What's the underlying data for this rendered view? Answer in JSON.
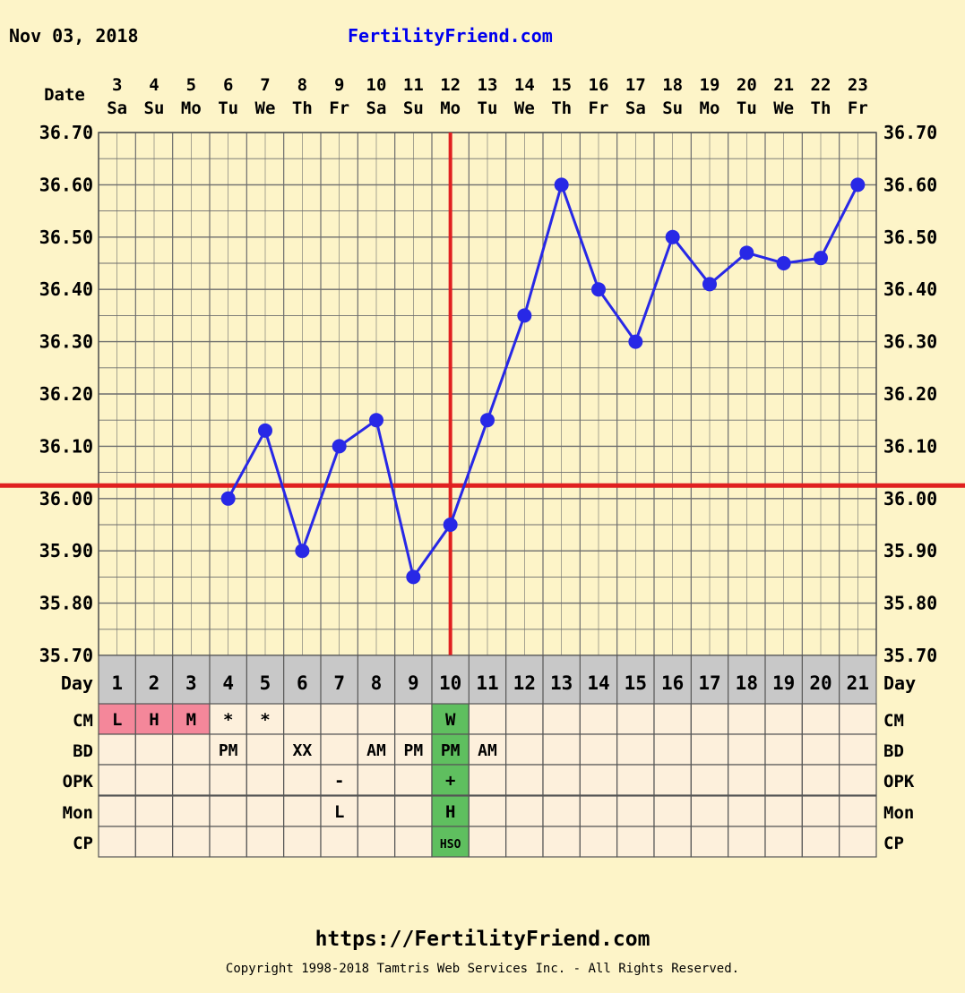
{
  "header": {
    "date_text": "Nov 03, 2018",
    "site_title": "FertilityFriend.com"
  },
  "footer": {
    "url": "https://FertilityFriend.com",
    "copyright": "Copyright 1998-2018 Tamtris Web Services Inc. - All Rights Reserved."
  },
  "colors": {
    "background": "#fdf4c8",
    "grid_line": "#6d6d6d",
    "temperature_line": "#2828e6",
    "coverline": "#e02020",
    "day_row_bg": "#c8c8c8",
    "period_cell": "#f4879a",
    "ovulation_cell": "#5fbf5f",
    "table_cell": "#fdf0dc"
  },
  "chart_data": {
    "type": "line",
    "title": "",
    "date_row_label": "Date",
    "day_row_label": "Day",
    "dates": [
      "3",
      "4",
      "5",
      "6",
      "7",
      "8",
      "9",
      "10",
      "11",
      "12",
      "13",
      "14",
      "15",
      "16",
      "17",
      "18",
      "19",
      "20",
      "21",
      "22",
      "23"
    ],
    "weekdays": [
      "Sa",
      "Su",
      "Mo",
      "Tu",
      "We",
      "Th",
      "Fr",
      "Sa",
      "Su",
      "Mo",
      "Tu",
      "We",
      "Th",
      "Fr",
      "Sa",
      "Su",
      "Mo",
      "Tu",
      "We",
      "Th",
      "Fr"
    ],
    "days": [
      "1",
      "2",
      "3",
      "4",
      "5",
      "6",
      "7",
      "8",
      "9",
      "10",
      "11",
      "12",
      "13",
      "14",
      "15",
      "16",
      "17",
      "18",
      "19",
      "20",
      "21"
    ],
    "y_ticks": [
      "36.70",
      "36.60",
      "36.50",
      "36.40",
      "36.30",
      "36.20",
      "36.10",
      "36.00",
      "35.90",
      "35.80",
      "35.70"
    ],
    "ylim": [
      35.7,
      36.7
    ],
    "y_minor_step": 0.05,
    "grid": true,
    "series": [
      {
        "values": [
          null,
          null,
          null,
          36.0,
          36.13,
          35.9,
          36.1,
          36.15,
          35.85,
          35.95,
          36.15,
          36.35,
          36.6,
          36.4,
          36.3,
          36.5,
          36.41,
          36.47,
          36.45,
          36.46,
          36.6
        ]
      }
    ],
    "coverline": 36.025,
    "ovulation_day": "10",
    "observation_rows": [
      {
        "label": "CM",
        "values": [
          "L",
          "H",
          "M",
          "*",
          "*",
          "",
          "",
          "",
          "",
          "W",
          "",
          "",
          "",
          "",
          "",
          "",
          "",
          "",
          "",
          "",
          ""
        ]
      },
      {
        "label": "BD",
        "values": [
          "",
          "",
          "",
          "PM",
          "",
          "XX",
          "",
          "AM",
          "PM",
          "PM",
          "AM",
          "",
          "",
          "",
          "",
          "",
          "",
          "",
          "",
          "",
          ""
        ]
      },
      {
        "label": "OPK",
        "values": [
          "",
          "",
          "",
          "",
          "",
          "",
          "-",
          "",
          "",
          "+",
          "",
          "",
          "",
          "",
          "",
          "",
          "",
          "",
          "",
          "",
          ""
        ]
      },
      {
        "label": "Mon",
        "values": [
          "",
          "",
          "",
          "",
          "",
          "",
          "L",
          "",
          "",
          "H",
          "",
          "",
          "",
          "",
          "",
          "",
          "",
          "",
          "",
          "",
          ""
        ]
      },
      {
        "label": "CP",
        "values": [
          "",
          "",
          "",
          "",
          "",
          "",
          "",
          "",
          "",
          "HSO",
          "",
          "",
          "",
          "",
          "",
          "",
          "",
          "",
          "",
          "",
          ""
        ]
      }
    ],
    "period_days": [
      0,
      1,
      2
    ],
    "ovulation_index": 9
  }
}
